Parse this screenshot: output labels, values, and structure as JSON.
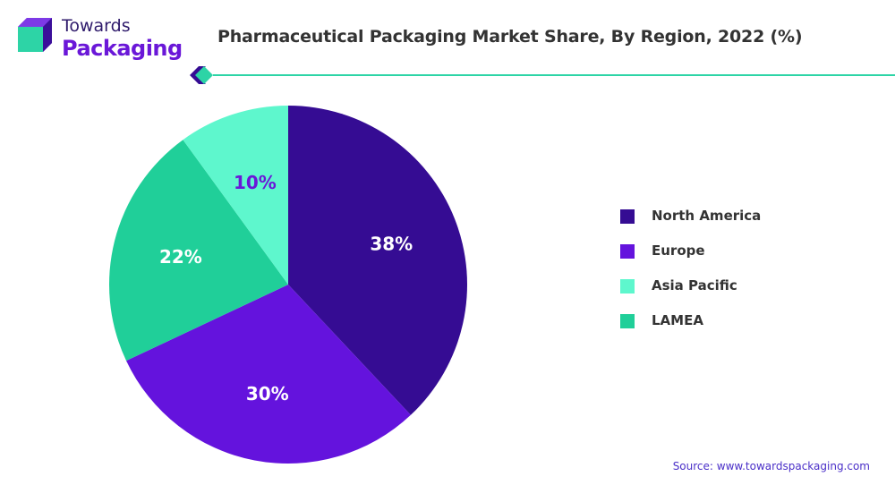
{
  "logo": {
    "line1": "Towards",
    "line2": "Packaging"
  },
  "colors": {
    "north_america": "#350c93",
    "europe": "#6413dd",
    "asia_pacific": "#5ef7cd",
    "lamea": "#20cf99",
    "accent_line": "#2dd4a6",
    "label_light": "#ffffff",
    "label_dark": "#6a17d8"
  },
  "chart_data": {
    "type": "pie",
    "title": "Pharmaceutical Packaging Market Share, By Region, 2022 (%)",
    "categories": [
      "North America",
      "Europe",
      "Asia Pacific",
      "LAMEA"
    ],
    "values": [
      38,
      30,
      10,
      22
    ],
    "order_clockwise_from_top": [
      "North America",
      "Europe",
      "LAMEA",
      "Asia Pacific"
    ],
    "labels": [
      "38%",
      "30%",
      "10%",
      "22%"
    ],
    "unit": "%",
    "legend_position": "right"
  },
  "source": "Source: www.towardspackaging.com"
}
